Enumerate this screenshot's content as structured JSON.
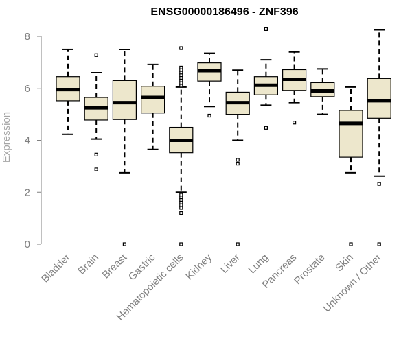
{
  "chart_data": {
    "type": "boxplot",
    "title": "ENSG00000186496 - ZNF396",
    "xlabel": "",
    "ylabel": "Expression",
    "ylim": [
      0,
      8.3
    ],
    "yticks": [
      0,
      2,
      4,
      6,
      8
    ],
    "grid": false,
    "box_fill": "#ede7cc",
    "box_stroke": "#000000",
    "label_color": "#808080",
    "categories": [
      "Bladder",
      "Brain",
      "Breast",
      "Gastric",
      "Hematopoietic cells",
      "Kidney",
      "Liver",
      "Lung",
      "Pancreas",
      "Prostate",
      "Skin",
      "Unknown / Other"
    ],
    "boxes": [
      {
        "name": "Bladder",
        "whisker_low": 4.23,
        "q1": 5.52,
        "median": 5.95,
        "q3": 6.45,
        "whisker_high": 7.5,
        "outliers": []
      },
      {
        "name": "Brain",
        "whisker_low": 4.05,
        "q1": 4.78,
        "median": 5.25,
        "q3": 5.65,
        "whisker_high": 6.6,
        "outliers": [
          7.28,
          3.45,
          2.88
        ]
      },
      {
        "name": "Breast",
        "whisker_low": 2.75,
        "q1": 4.8,
        "median": 5.45,
        "q3": 6.3,
        "whisker_high": 7.5,
        "outliers": [
          0
        ]
      },
      {
        "name": "Gastric",
        "whisker_low": 3.65,
        "q1": 5.05,
        "median": 5.65,
        "q3": 6.08,
        "whisker_high": 6.92,
        "outliers": []
      },
      {
        "name": "Hematopoietic cells",
        "whisker_low": 2.0,
        "q1": 3.52,
        "median": 4.0,
        "q3": 4.5,
        "whisker_high": 6.05,
        "outliers": [
          7.55,
          6.8,
          6.7,
          6.6,
          6.5,
          6.4,
          6.3,
          6.2,
          6.1,
          1.9,
          1.8,
          1.7,
          1.6,
          1.5,
          1.4,
          1.2,
          0
        ]
      },
      {
        "name": "Kidney",
        "whisker_low": 5.3,
        "q1": 6.28,
        "median": 6.68,
        "q3": 6.98,
        "whisker_high": 7.35,
        "outliers": [
          4.95
        ]
      },
      {
        "name": "Liver",
        "whisker_low": 4.0,
        "q1": 5.0,
        "median": 5.45,
        "q3": 5.85,
        "whisker_high": 6.7,
        "outliers": [
          3.25,
          3.1,
          0
        ]
      },
      {
        "name": "Lung",
        "whisker_low": 5.35,
        "q1": 5.75,
        "median": 6.12,
        "q3": 6.45,
        "whisker_high": 7.1,
        "outliers": [
          8.28,
          4.48
        ]
      },
      {
        "name": "Pancreas",
        "whisker_low": 5.45,
        "q1": 5.92,
        "median": 6.35,
        "q3": 6.72,
        "whisker_high": 7.4,
        "outliers": [
          4.68
        ]
      },
      {
        "name": "Prostate",
        "whisker_low": 5.0,
        "q1": 5.68,
        "median": 5.9,
        "q3": 6.22,
        "whisker_high": 6.75,
        "outliers": []
      },
      {
        "name": "Skin",
        "whisker_low": 2.75,
        "q1": 3.35,
        "median": 4.65,
        "q3": 5.15,
        "whisker_high": 6.05,
        "outliers": [
          0
        ]
      },
      {
        "name": "Unknown / Other",
        "whisker_low": 2.62,
        "q1": 4.85,
        "median": 5.52,
        "q3": 6.38,
        "whisker_high": 8.25,
        "outliers": [
          2.32,
          0
        ]
      }
    ]
  }
}
